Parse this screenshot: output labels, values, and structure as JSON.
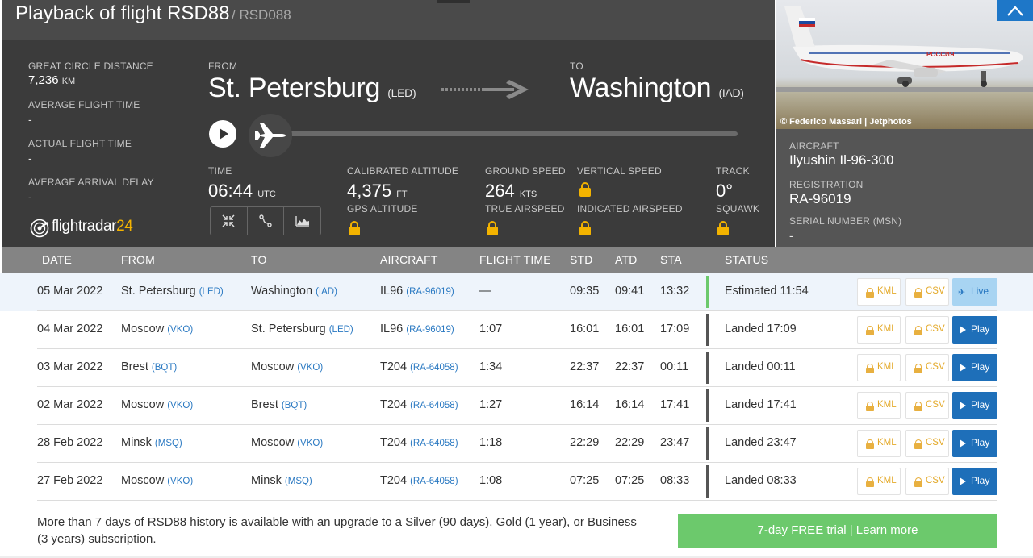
{
  "header": {
    "title": "Playback of flight RSD88",
    "callsign": "/ RSD088"
  },
  "stats": {
    "great_circle_label": "GREAT CIRCLE DISTANCE",
    "great_circle_value": "7,236",
    "great_circle_unit": "KM",
    "avg_flight_time_label": "AVERAGE FLIGHT TIME",
    "avg_flight_time_value": "-",
    "actual_flight_time_label": "ACTUAL FLIGHT TIME",
    "actual_flight_time_value": "-",
    "avg_arrival_delay_label": "AVERAGE ARRIVAL DELAY",
    "avg_arrival_delay_value": "-"
  },
  "route": {
    "from_label": "FROM",
    "from_city": "St. Petersburg",
    "from_code": "(LED)",
    "to_label": "TO",
    "to_city": "Washington",
    "to_code": "(IAD)"
  },
  "telemetry": {
    "time_label": "TIME",
    "time_value": "06:44",
    "time_unit": "UTC",
    "cal_alt_label": "CALIBRATED ALTITUDE",
    "cal_alt_value": "4,375",
    "cal_alt_unit": "FT",
    "gps_alt_label": "GPS ALTITUDE",
    "ground_speed_label": "GROUND SPEED",
    "ground_speed_value": "264",
    "ground_speed_unit": "KTS",
    "true_airspeed_label": "TRUE AIRSPEED",
    "vertical_speed_label": "VERTICAL SPEED",
    "indicated_airspeed_label": "INDICATED AIRSPEED",
    "track_label": "TRACK",
    "track_value": "0°",
    "squawk_label": "SQUAWK"
  },
  "logo": {
    "text": "flightradar",
    "number": "24"
  },
  "aircraft": {
    "photo_credit": "© Federico Massari | Jetphotos",
    "livery_text": "РОССИЯ",
    "aircraft_label": "AIRCRAFT",
    "aircraft_value": "Ilyushin Il-96-300",
    "registration_label": "REGISTRATION",
    "registration_value": "RA-96019",
    "msn_label": "SERIAL NUMBER (MSN)",
    "msn_value": "-"
  },
  "table": {
    "headers": {
      "date": "DATE",
      "from": "FROM",
      "to": "TO",
      "aircraft": "AIRCRAFT",
      "flight_time": "FLIGHT TIME",
      "std": "STD",
      "atd": "ATD",
      "sta": "STA",
      "status": "STATUS"
    },
    "kml_label": "KML",
    "csv_label": "CSV",
    "rows": [
      {
        "date": "05 Mar 2022",
        "from": "St. Petersburg",
        "from_code": "(LED)",
        "to": "Washington",
        "to_code": "(IAD)",
        "aircraft": "IL96",
        "reg": "(RA-96019)",
        "flight_time": "—",
        "std": "09:35",
        "atd": "09:41",
        "sta": "13:32",
        "status": "Estimated 11:54",
        "action": "Live",
        "status_color": "#6cc96c"
      },
      {
        "date": "04 Mar 2022",
        "from": "Moscow",
        "from_code": "(VKO)",
        "to": "St. Petersburg",
        "to_code": "(LED)",
        "aircraft": "IL96",
        "reg": "(RA-96019)",
        "flight_time": "1:07",
        "std": "16:01",
        "atd": "16:01",
        "sta": "17:09",
        "status": "Landed 17:09",
        "action": "Play",
        "status_color": "#555555"
      },
      {
        "date": "03 Mar 2022",
        "from": "Brest",
        "from_code": "(BQT)",
        "to": "Moscow",
        "to_code": "(VKO)",
        "aircraft": "T204",
        "reg": "(RA-64058)",
        "flight_time": "1:34",
        "std": "22:37",
        "atd": "22:37",
        "sta": "00:11",
        "status": "Landed 00:11",
        "action": "Play",
        "status_color": "#555555"
      },
      {
        "date": "02 Mar 2022",
        "from": "Moscow",
        "from_code": "(VKO)",
        "to": "Brest",
        "to_code": "(BQT)",
        "aircraft": "T204",
        "reg": "(RA-64058)",
        "flight_time": "1:27",
        "std": "16:14",
        "atd": "16:14",
        "sta": "17:41",
        "status": "Landed 17:41",
        "action": "Play",
        "status_color": "#555555"
      },
      {
        "date": "28 Feb 2022",
        "from": "Minsk",
        "from_code": "(MSQ)",
        "to": "Moscow",
        "to_code": "(VKO)",
        "aircraft": "T204",
        "reg": "(RA-64058)",
        "flight_time": "1:18",
        "std": "22:29",
        "atd": "22:29",
        "sta": "23:47",
        "status": "Landed 23:47",
        "action": "Play",
        "status_color": "#555555"
      },
      {
        "date": "27 Feb 2022",
        "from": "Moscow",
        "from_code": "(VKO)",
        "to": "Minsk",
        "to_code": "(MSQ)",
        "aircraft": "T204",
        "reg": "(RA-64058)",
        "flight_time": "1:08",
        "std": "07:25",
        "atd": "07:25",
        "sta": "08:33",
        "status": "Landed 08:33",
        "action": "Play",
        "status_color": "#555555"
      }
    ]
  },
  "footer": {
    "upgrade_text": "More than 7 days of RSD88 history is available with an upgrade to a Silver (90 days), Gold (1 year), or Business (3 years) subscription.",
    "trial_button": "7-day FREE trial | Learn more"
  }
}
